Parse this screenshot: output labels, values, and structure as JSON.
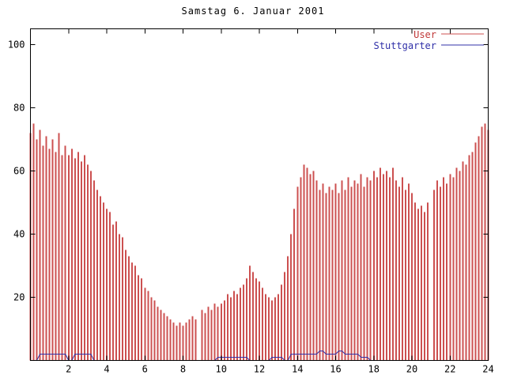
{
  "chart_data": {
    "type": "bar",
    "title": "Samstag 6. Januar 2001",
    "xlabel": "",
    "ylabel": "",
    "xlim": [
      0,
      24
    ],
    "ylim": [
      0,
      105
    ],
    "x_ticks": [
      2,
      4,
      6,
      8,
      10,
      12,
      14,
      16,
      18,
      20,
      22,
      24
    ],
    "y_ticks": [
      20,
      40,
      60,
      80,
      100
    ],
    "grid": false,
    "legend_position": "top-right",
    "x_start": 0,
    "x_step_hours": 0.1666667,
    "colors": {
      "user": "#cc5050",
      "user_text": "#c03838",
      "stuttgarter": "#3030a8",
      "border": "#000000",
      "tick_text": "#000000"
    },
    "series": [
      {
        "name": "User",
        "style": "impulses",
        "color": "#cc5050",
        "values": [
          72,
          75,
          70,
          73,
          68,
          71,
          67,
          70,
          66,
          72,
          65,
          68,
          65,
          67,
          64,
          66,
          63,
          65,
          62,
          60,
          57,
          54,
          52,
          50,
          48,
          47,
          43,
          44,
          40,
          39,
          35,
          33,
          31,
          30,
          27,
          26,
          23,
          22,
          20,
          19,
          17,
          16,
          15,
          14,
          13,
          12,
          11,
          12,
          11,
          12,
          13,
          14,
          13,
          0,
          16,
          15,
          17,
          16,
          18,
          17,
          18,
          19,
          21,
          20,
          22,
          21,
          23,
          24,
          26,
          30,
          28,
          26,
          25,
          23,
          21,
          20,
          19,
          20,
          21,
          24,
          28,
          33,
          40,
          48,
          55,
          58,
          62,
          61,
          59,
          60,
          57,
          54,
          56,
          53,
          55,
          54,
          56,
          53,
          57,
          54,
          58,
          55,
          57,
          56,
          59,
          55,
          58,
          57,
          60,
          58,
          61,
          59,
          60,
          58,
          61,
          57,
          55,
          58,
          54,
          56,
          53,
          50,
          48,
          49,
          47,
          50,
          0,
          54,
          57,
          55,
          58,
          56,
          59,
          58,
          61,
          60,
          63,
          62,
          65,
          66,
          69,
          71,
          74,
          75,
          73
        ]
      },
      {
        "name": "Stuttgarter",
        "style": "line",
        "color": "#3030a8",
        "values": [
          0,
          0,
          0,
          2,
          2,
          2,
          2,
          2,
          2,
          2,
          2,
          2,
          0,
          0,
          2,
          2,
          2,
          2,
          2,
          2,
          0,
          0,
          0,
          0,
          0,
          0,
          0,
          0,
          0,
          0,
          0,
          0,
          0,
          0,
          0,
          0,
          0,
          0,
          0,
          0,
          0,
          0,
          0,
          0,
          0,
          0,
          0,
          0,
          0,
          0,
          0,
          0,
          0,
          0,
          0,
          0,
          0,
          0,
          0,
          1,
          1,
          1,
          1,
          1,
          1,
          1,
          1,
          1,
          1,
          0,
          0,
          0,
          0,
          0,
          0,
          0,
          1,
          1,
          1,
          1,
          0,
          0,
          2,
          2,
          2,
          2,
          2,
          2,
          2,
          2,
          2,
          3,
          3,
          2,
          2,
          2,
          2,
          3,
          3,
          2,
          2,
          2,
          2,
          2,
          1,
          1,
          1,
          0,
          0,
          0,
          0,
          0,
          0,
          0,
          0,
          0,
          0,
          0,
          0,
          0,
          0,
          0,
          0,
          0,
          0,
          0
        ]
      }
    ]
  }
}
